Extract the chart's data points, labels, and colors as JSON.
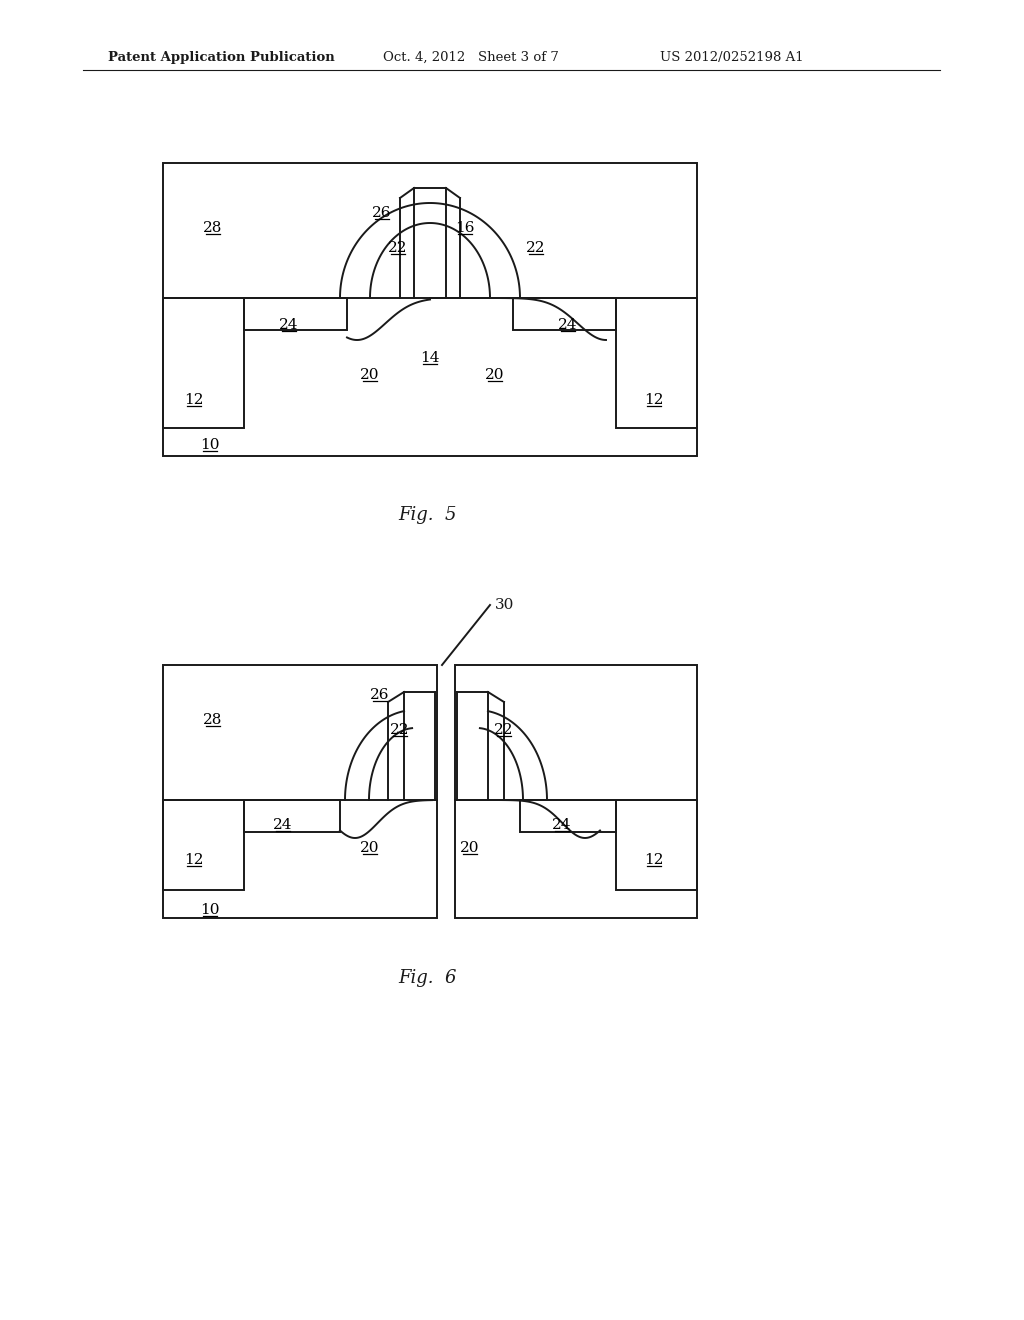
{
  "bg_color": "#ffffff",
  "line_color": "#1a1a1a",
  "header_left": "Patent Application Publication",
  "header_mid": "Oct. 4, 2012   Sheet 3 of 7",
  "header_right": "US 2012/0252198 A1",
  "fig5_label": "Fig.  5",
  "fig6_label": "Fig.  6"
}
